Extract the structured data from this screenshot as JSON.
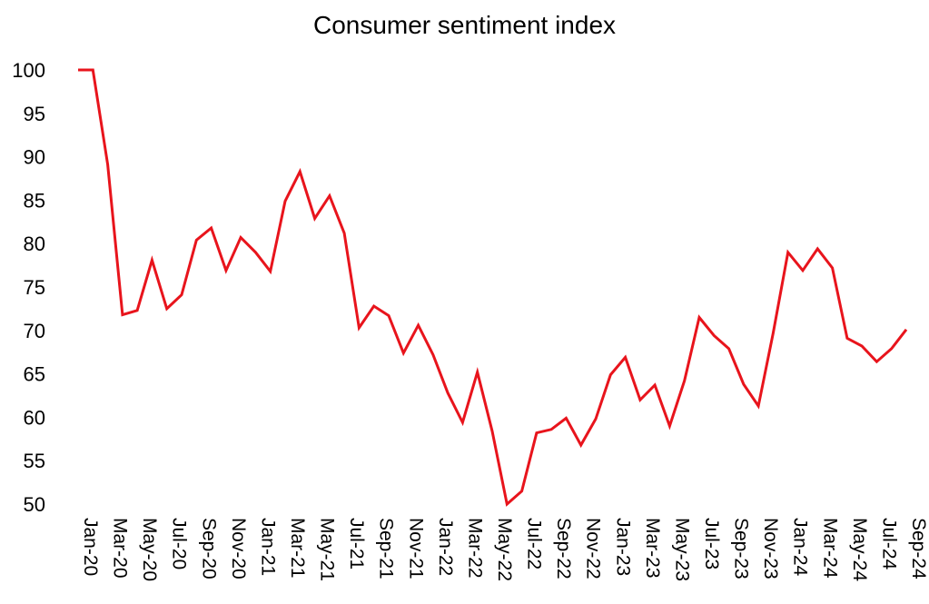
{
  "chart_data": {
    "type": "line",
    "title": "Consumer sentiment index",
    "xlabel": "",
    "ylabel": "",
    "ylim": [
      50,
      100
    ],
    "yticks": [
      "50",
      "55",
      "60",
      "65",
      "70",
      "75",
      "80",
      "85",
      "90",
      "95",
      "100"
    ],
    "grid": false,
    "legend": "none",
    "colors": {
      "line": "#e8141c",
      "text": "#000000"
    },
    "categories": [
      "Jan-20",
      "Feb-20",
      "Mar-20",
      "Apr-20",
      "May-20",
      "Jun-20",
      "Jul-20",
      "Aug-20",
      "Sep-20",
      "Oct-20",
      "Nov-20",
      "Dec-20",
      "Jan-21",
      "Feb-21",
      "Mar-21",
      "Apr-21",
      "May-21",
      "Jun-21",
      "Jul-21",
      "Aug-21",
      "Sep-21",
      "Oct-21",
      "Nov-21",
      "Dec-21",
      "Jan-22",
      "Feb-22",
      "Mar-22",
      "Apr-22",
      "May-22",
      "Jun-22",
      "Jul-22",
      "Aug-22",
      "Sep-22",
      "Oct-22",
      "Nov-22",
      "Dec-22",
      "Jan-23",
      "Feb-23",
      "Mar-23",
      "Apr-23",
      "May-23",
      "Jun-23",
      "Jul-23",
      "Aug-23",
      "Sep-23",
      "Oct-23",
      "Nov-23",
      "Dec-23",
      "Jan-24",
      "Feb-24",
      "Mar-24",
      "Apr-24",
      "May-24",
      "Jun-24",
      "Jul-24",
      "Aug-24",
      "Sep-24"
    ],
    "tick_labels": [
      "Jan-20",
      "Mar-20",
      "May-20",
      "Jul-20",
      "Sep-20",
      "Nov-20",
      "Jan-21",
      "Mar-21",
      "May-21",
      "Jul-21",
      "Sep-21",
      "Nov-21",
      "Jan-22",
      "Mar-22",
      "May-22",
      "Jul-22",
      "Sep-22",
      "Nov-22",
      "Jan-23",
      "Mar-23",
      "May-23",
      "Jul-23",
      "Sep-23",
      "Nov-23",
      "Jan-24",
      "Mar-24",
      "May-24",
      "Jul-24",
      "Sep-24"
    ],
    "series": [
      {
        "name": "Consumer sentiment index",
        "values": [
          100,
          100,
          89.1,
          71.8,
          72.3,
          78.1,
          72.5,
          74.1,
          80.4,
          81.8,
          76.9,
          80.7,
          79.0,
          76.8,
          84.9,
          88.3,
          82.9,
          85.5,
          81.2,
          70.3,
          72.8,
          71.7,
          67.4,
          70.6,
          67.2,
          62.8,
          59.4,
          65.2,
          58.4,
          50.0,
          51.5,
          58.2,
          58.6,
          59.9,
          56.8,
          59.8,
          64.9,
          66.9,
          62.0,
          63.7,
          59.0,
          64.2,
          71.5,
          69.4,
          67.9,
          63.8,
          61.3,
          69.7,
          79.0,
          76.9,
          79.4,
          77.2,
          69.1,
          68.2,
          66.4,
          67.9,
          70.1
        ]
      }
    ]
  }
}
